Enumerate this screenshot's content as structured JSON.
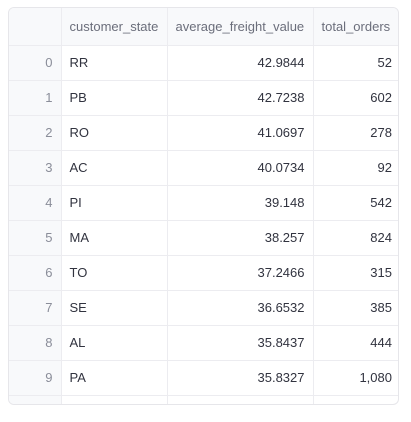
{
  "table": {
    "columns": [
      "",
      "customer_state",
      "average_freight_value",
      "total_orders"
    ],
    "rows": [
      {
        "index": "0",
        "customer_state": "RR",
        "average_freight_value": "42.9844",
        "total_orders": "52"
      },
      {
        "index": "1",
        "customer_state": "PB",
        "average_freight_value": "42.7238",
        "total_orders": "602"
      },
      {
        "index": "2",
        "customer_state": "RO",
        "average_freight_value": "41.0697",
        "total_orders": "278"
      },
      {
        "index": "3",
        "customer_state": "AC",
        "average_freight_value": "40.0734",
        "total_orders": "92"
      },
      {
        "index": "4",
        "customer_state": "PI",
        "average_freight_value": "39.148",
        "total_orders": "542"
      },
      {
        "index": "5",
        "customer_state": "MA",
        "average_freight_value": "38.257",
        "total_orders": "824"
      },
      {
        "index": "6",
        "customer_state": "TO",
        "average_freight_value": "37.2466",
        "total_orders": "315"
      },
      {
        "index": "7",
        "customer_state": "SE",
        "average_freight_value": "36.6532",
        "total_orders": "385"
      },
      {
        "index": "8",
        "customer_state": "AL",
        "average_freight_value": "35.8437",
        "total_orders": "444"
      },
      {
        "index": "9",
        "customer_state": "PA",
        "average_freight_value": "35.8327",
        "total_orders": "1,080"
      }
    ]
  }
}
